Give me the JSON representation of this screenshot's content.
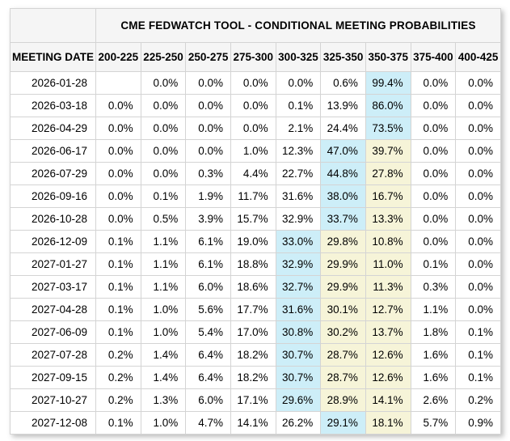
{
  "title": "CME FEDWATCH TOOL - CONDITIONAL MEETING PROBABILITIES",
  "colors": {
    "highlight_blue": "#cdeef8",
    "highlight_yellow": "#f6f4d8",
    "header_bg": "#f5f5f5",
    "border": "#d4d4d4",
    "text": "#000000"
  },
  "table": {
    "corner_label": "",
    "date_column_header": "MEETING DATE",
    "rate_columns": [
      "200-225",
      "225-250",
      "250-275",
      "275-300",
      "300-325",
      "325-350",
      "350-375",
      "375-400",
      "400-425"
    ],
    "rows": [
      {
        "date": "2026-01-28",
        "values": [
          "",
          "0.0%",
          "0.0%",
          "0.0%",
          "0.0%",
          "0.6%",
          "99.4%",
          "0.0%",
          "0.0%"
        ],
        "highlights": [
          "",
          "",
          "",
          "",
          "",
          "",
          "blue",
          "",
          ""
        ]
      },
      {
        "date": "2026-03-18",
        "values": [
          "0.0%",
          "0.0%",
          "0.0%",
          "0.0%",
          "0.1%",
          "13.9%",
          "86.0%",
          "0.0%",
          "0.0%"
        ],
        "highlights": [
          "",
          "",
          "",
          "",
          "",
          "",
          "blue",
          "",
          ""
        ]
      },
      {
        "date": "2026-04-29",
        "values": [
          "0.0%",
          "0.0%",
          "0.0%",
          "0.0%",
          "2.1%",
          "24.4%",
          "73.5%",
          "0.0%",
          "0.0%"
        ],
        "highlights": [
          "",
          "",
          "",
          "",
          "",
          "",
          "blue",
          "",
          ""
        ]
      },
      {
        "date": "2026-06-17",
        "values": [
          "0.0%",
          "0.0%",
          "0.0%",
          "1.0%",
          "12.3%",
          "47.0%",
          "39.7%",
          "0.0%",
          "0.0%"
        ],
        "highlights": [
          "",
          "",
          "",
          "",
          "",
          "blue",
          "yellow",
          "",
          ""
        ]
      },
      {
        "date": "2026-07-29",
        "values": [
          "0.0%",
          "0.0%",
          "0.3%",
          "4.4%",
          "22.7%",
          "44.8%",
          "27.8%",
          "0.0%",
          "0.0%"
        ],
        "highlights": [
          "",
          "",
          "",
          "",
          "",
          "blue",
          "yellow",
          "",
          ""
        ]
      },
      {
        "date": "2026-09-16",
        "values": [
          "0.0%",
          "0.1%",
          "1.9%",
          "11.7%",
          "31.6%",
          "38.0%",
          "16.7%",
          "0.0%",
          "0.0%"
        ],
        "highlights": [
          "",
          "",
          "",
          "",
          "",
          "blue",
          "yellow",
          "",
          ""
        ]
      },
      {
        "date": "2026-10-28",
        "values": [
          "0.0%",
          "0.5%",
          "3.9%",
          "15.7%",
          "32.9%",
          "33.7%",
          "13.3%",
          "0.0%",
          "0.0%"
        ],
        "highlights": [
          "",
          "",
          "",
          "",
          "",
          "blue",
          "yellow",
          "",
          ""
        ]
      },
      {
        "date": "2026-12-09",
        "values": [
          "0.1%",
          "1.1%",
          "6.1%",
          "19.0%",
          "33.0%",
          "29.8%",
          "10.8%",
          "0.0%",
          "0.0%"
        ],
        "highlights": [
          "",
          "",
          "",
          "",
          "blue",
          "yellow",
          "yellow",
          "",
          ""
        ]
      },
      {
        "date": "2027-01-27",
        "values": [
          "0.1%",
          "1.1%",
          "6.1%",
          "18.8%",
          "32.9%",
          "29.9%",
          "11.0%",
          "0.1%",
          "0.0%"
        ],
        "highlights": [
          "",
          "",
          "",
          "",
          "blue",
          "yellow",
          "yellow",
          "",
          ""
        ]
      },
      {
        "date": "2027-03-17",
        "values": [
          "0.1%",
          "1.1%",
          "6.0%",
          "18.6%",
          "32.7%",
          "29.9%",
          "11.3%",
          "0.3%",
          "0.0%"
        ],
        "highlights": [
          "",
          "",
          "",
          "",
          "blue",
          "yellow",
          "yellow",
          "",
          ""
        ]
      },
      {
        "date": "2027-04-28",
        "values": [
          "0.1%",
          "1.0%",
          "5.6%",
          "17.7%",
          "31.6%",
          "30.1%",
          "12.7%",
          "1.1%",
          "0.0%"
        ],
        "highlights": [
          "",
          "",
          "",
          "",
          "blue",
          "yellow",
          "yellow",
          "",
          ""
        ]
      },
      {
        "date": "2027-06-09",
        "values": [
          "0.1%",
          "1.0%",
          "5.4%",
          "17.0%",
          "30.8%",
          "30.2%",
          "13.7%",
          "1.8%",
          "0.1%"
        ],
        "highlights": [
          "",
          "",
          "",
          "",
          "blue",
          "yellow",
          "yellow",
          "",
          ""
        ]
      },
      {
        "date": "2027-07-28",
        "values": [
          "0.2%",
          "1.4%",
          "6.4%",
          "18.2%",
          "30.7%",
          "28.7%",
          "12.6%",
          "1.6%",
          "0.1%"
        ],
        "highlights": [
          "",
          "",
          "",
          "",
          "blue",
          "yellow",
          "yellow",
          "",
          ""
        ]
      },
      {
        "date": "2027-09-15",
        "values": [
          "0.2%",
          "1.4%",
          "6.4%",
          "18.2%",
          "30.7%",
          "28.7%",
          "12.6%",
          "1.6%",
          "0.1%"
        ],
        "highlights": [
          "",
          "",
          "",
          "",
          "blue",
          "yellow",
          "yellow",
          "",
          ""
        ]
      },
      {
        "date": "2027-10-27",
        "values": [
          "0.2%",
          "1.3%",
          "6.0%",
          "17.1%",
          "29.6%",
          "28.9%",
          "14.1%",
          "2.6%",
          "0.2%"
        ],
        "highlights": [
          "",
          "",
          "",
          "",
          "blue",
          "yellow",
          "yellow",
          "",
          ""
        ]
      },
      {
        "date": "2027-12-08",
        "values": [
          "0.1%",
          "1.0%",
          "4.7%",
          "14.1%",
          "26.2%",
          "29.1%",
          "18.1%",
          "5.7%",
          "0.9%"
        ],
        "highlights": [
          "",
          "",
          "",
          "",
          "",
          "blue",
          "yellow",
          "",
          ""
        ]
      }
    ]
  }
}
